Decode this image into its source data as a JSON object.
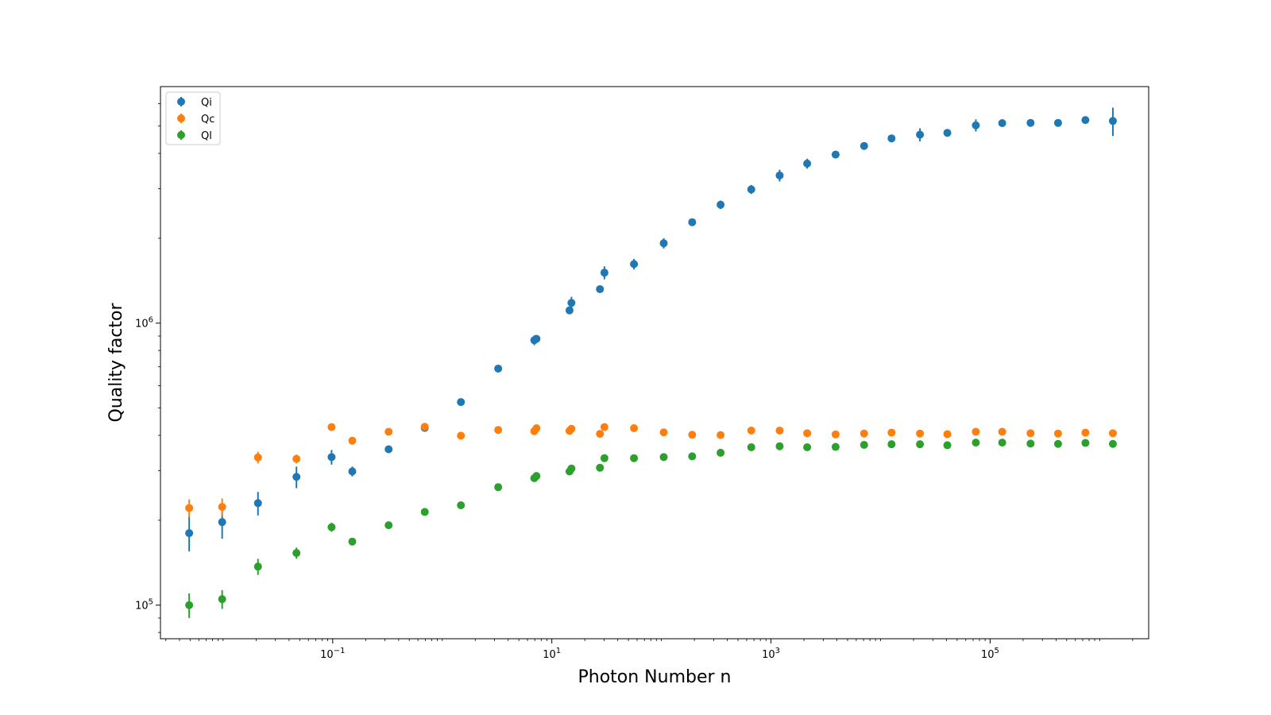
{
  "chart_data": {
    "type": "scatter",
    "title": "",
    "xlabel": "Photon Number n",
    "ylabel": "Quality factor",
    "xscale": "log",
    "yscale": "log",
    "xlim": [
      0.00268,
      2800000
    ],
    "ylim": [
      76000,
      6900000
    ],
    "x_ticks": [
      {
        "value": 0.1,
        "base": "10",
        "exp": "−1"
      },
      {
        "value": 10,
        "base": "10",
        "exp": "1"
      },
      {
        "value": 1000,
        "base": "10",
        "exp": "3"
      },
      {
        "value": 100000,
        "base": "10",
        "exp": "5"
      }
    ],
    "y_ticks": [
      {
        "value": 100000,
        "base": "10",
        "exp": "5"
      },
      {
        "value": 1000000,
        "base": "10",
        "exp": "6"
      }
    ],
    "grid": false,
    "legend_position": "top-left",
    "series": [
      {
        "name": "Qi",
        "color": "#1f77b4",
        "points": [
          {
            "x": 0.0049,
            "y": 180000,
            "err": 25000
          },
          {
            "x": 0.0098,
            "y": 197000,
            "err": 25000
          },
          {
            "x": 0.0208,
            "y": 230000,
            "err": 22000
          },
          {
            "x": 0.0467,
            "y": 285000,
            "err": 25000
          },
          {
            "x": 0.0977,
            "y": 335000,
            "err": 20000
          },
          {
            "x": 0.151,
            "y": 298000,
            "err": 12000
          },
          {
            "x": 0.324,
            "y": 357000,
            "err": 8000
          },
          {
            "x": 0.692,
            "y": 425000,
            "err": 8000
          },
          {
            "x": 1.48,
            "y": 525000,
            "err": 6000
          },
          {
            "x": 3.24,
            "y": 690000,
            "err": 8000
          },
          {
            "x": 6.92,
            "y": 870000,
            "err": 35000
          },
          {
            "x": 7.24,
            "y": 880000,
            "err": 20000
          },
          {
            "x": 14.5,
            "y": 1110000,
            "err": 30000
          },
          {
            "x": 15.1,
            "y": 1180000,
            "err": 60000
          },
          {
            "x": 27.5,
            "y": 1320000,
            "err": 20000
          },
          {
            "x": 30.2,
            "y": 1510000,
            "err": 80000
          },
          {
            "x": 56.2,
            "y": 1620000,
            "err": 70000
          },
          {
            "x": 105,
            "y": 1920000,
            "err": 80000
          },
          {
            "x": 191,
            "y": 2280000,
            "err": 70000
          },
          {
            "x": 347,
            "y": 2630000,
            "err": 90000
          },
          {
            "x": 661,
            "y": 2980000,
            "err": 110000
          },
          {
            "x": 1200,
            "y": 3340000,
            "err": 160000
          },
          {
            "x": 2140,
            "y": 3680000,
            "err": 150000
          },
          {
            "x": 3890,
            "y": 3960000,
            "err": 80000
          },
          {
            "x": 7080,
            "y": 4250000,
            "err": 70000
          },
          {
            "x": 12600,
            "y": 4520000,
            "err": 70000
          },
          {
            "x": 22900,
            "y": 4660000,
            "err": 250000
          },
          {
            "x": 40700,
            "y": 4730000,
            "err": 100000
          },
          {
            "x": 74100,
            "y": 5030000,
            "err": 250000
          },
          {
            "x": 129000,
            "y": 5120000,
            "err": 100000
          },
          {
            "x": 234000,
            "y": 5130000,
            "err": 100000
          },
          {
            "x": 417000,
            "y": 5130000,
            "err": 120000
          },
          {
            "x": 741000,
            "y": 5250000,
            "err": 100000
          },
          {
            "x": 1320000,
            "y": 5210000,
            "err": 600000
          }
        ]
      },
      {
        "name": "Qc",
        "color": "#ff7f0e",
        "points": [
          {
            "x": 0.0049,
            "y": 221000,
            "err": 16000
          },
          {
            "x": 0.0098,
            "y": 223000,
            "err": 16000
          },
          {
            "x": 0.0208,
            "y": 334000,
            "err": 16000
          },
          {
            "x": 0.0467,
            "y": 330000,
            "err": 12000
          },
          {
            "x": 0.0977,
            "y": 428000,
            "err": 8000
          },
          {
            "x": 0.151,
            "y": 383000,
            "err": 6000
          },
          {
            "x": 0.324,
            "y": 412000,
            "err": 5000
          },
          {
            "x": 0.692,
            "y": 429000,
            "err": 12000
          },
          {
            "x": 1.48,
            "y": 399000,
            "err": 5000
          },
          {
            "x": 3.24,
            "y": 418000,
            "err": 5000
          },
          {
            "x": 6.92,
            "y": 414000,
            "err": 8000
          },
          {
            "x": 7.24,
            "y": 424000,
            "err": 8000
          },
          {
            "x": 14.5,
            "y": 415000,
            "err": 8000
          },
          {
            "x": 15.1,
            "y": 422000,
            "err": 8000
          },
          {
            "x": 27.5,
            "y": 405000,
            "err": 5000
          },
          {
            "x": 30.2,
            "y": 428000,
            "err": 8000
          },
          {
            "x": 56.2,
            "y": 424000,
            "err": 6000
          },
          {
            "x": 105,
            "y": 410000,
            "err": 5000
          },
          {
            "x": 191,
            "y": 402000,
            "err": 5000
          },
          {
            "x": 347,
            "y": 401000,
            "err": 5000
          },
          {
            "x": 661,
            "y": 416000,
            "err": 5000
          },
          {
            "x": 1200,
            "y": 416000,
            "err": 5000
          },
          {
            "x": 2140,
            "y": 407000,
            "err": 5000
          },
          {
            "x": 3890,
            "y": 403000,
            "err": 5000
          },
          {
            "x": 7080,
            "y": 406000,
            "err": 5000
          },
          {
            "x": 12600,
            "y": 409000,
            "err": 5000
          },
          {
            "x": 22900,
            "y": 406000,
            "err": 5000
          },
          {
            "x": 40700,
            "y": 404000,
            "err": 5000
          },
          {
            "x": 74100,
            "y": 412000,
            "err": 5000
          },
          {
            "x": 129000,
            "y": 412000,
            "err": 5000
          },
          {
            "x": 234000,
            "y": 407000,
            "err": 5000
          },
          {
            "x": 417000,
            "y": 406000,
            "err": 5000
          },
          {
            "x": 741000,
            "y": 409000,
            "err": 5000
          },
          {
            "x": 1320000,
            "y": 407000,
            "err": 5000
          }
        ]
      },
      {
        "name": "Ql",
        "color": "#2ca02c",
        "points": [
          {
            "x": 0.0049,
            "y": 100000,
            "err": 10000
          },
          {
            "x": 0.0098,
            "y": 105000,
            "err": 8000
          },
          {
            "x": 0.0208,
            "y": 137000,
            "err": 9000
          },
          {
            "x": 0.0467,
            "y": 153000,
            "err": 7000
          },
          {
            "x": 0.0977,
            "y": 189000,
            "err": 7000
          },
          {
            "x": 0.151,
            "y": 168000,
            "err": 4000
          },
          {
            "x": 0.324,
            "y": 192000,
            "err": 4000
          },
          {
            "x": 0.692,
            "y": 214000,
            "err": 4000
          },
          {
            "x": 1.48,
            "y": 226000,
            "err": 4000
          },
          {
            "x": 3.24,
            "y": 262000,
            "err": 4000
          },
          {
            "x": 6.92,
            "y": 282000,
            "err": 5000
          },
          {
            "x": 7.24,
            "y": 287000,
            "err": 5000
          },
          {
            "x": 14.5,
            "y": 298000,
            "err": 5000
          },
          {
            "x": 15.1,
            "y": 305000,
            "err": 5000
          },
          {
            "x": 27.5,
            "y": 307000,
            "err": 4000
          },
          {
            "x": 30.2,
            "y": 332000,
            "err": 4000
          },
          {
            "x": 56.2,
            "y": 332000,
            "err": 4000
          },
          {
            "x": 105,
            "y": 335000,
            "err": 4000
          },
          {
            "x": 191,
            "y": 337000,
            "err": 4000
          },
          {
            "x": 347,
            "y": 347000,
            "err": 4000
          },
          {
            "x": 661,
            "y": 363000,
            "err": 4000
          },
          {
            "x": 1200,
            "y": 366000,
            "err": 4000
          },
          {
            "x": 2140,
            "y": 363000,
            "err": 4000
          },
          {
            "x": 3890,
            "y": 364000,
            "err": 4000
          },
          {
            "x": 7080,
            "y": 370000,
            "err": 4000
          },
          {
            "x": 12600,
            "y": 372000,
            "err": 4000
          },
          {
            "x": 22900,
            "y": 372000,
            "err": 4000
          },
          {
            "x": 40700,
            "y": 369000,
            "err": 4000
          },
          {
            "x": 74100,
            "y": 377000,
            "err": 4000
          },
          {
            "x": 129000,
            "y": 377000,
            "err": 4000
          },
          {
            "x": 234000,
            "y": 374000,
            "err": 4000
          },
          {
            "x": 417000,
            "y": 373000,
            "err": 4000
          },
          {
            "x": 741000,
            "y": 376000,
            "err": 4000
          },
          {
            "x": 1320000,
            "y": 373000,
            "err": 4000
          }
        ]
      }
    ]
  }
}
